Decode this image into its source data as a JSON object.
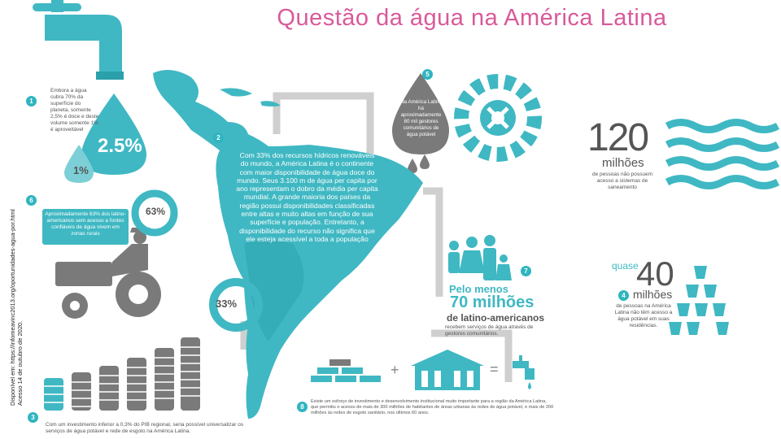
{
  "title": "Questão da água na América Latina",
  "source": {
    "line1": "Disponível em: https://infomeavinc2013.org/oportunidades-agua-por.html",
    "line2": "Acesso 14 de outubro de 2020."
  },
  "sections": {
    "s1": {
      "num": "1",
      "text": "Embora a água cubra 70% da superfície do planeta, somente 2,5% é doce e deste volume somente 1% é aproveitável",
      "pct_big": "2.5%",
      "pct_small": "1%"
    },
    "s2": {
      "num": "2",
      "text": "Com 33% dos recursos hídricos renováveis do mundo, a América Latina é o continente com maior disponibilidade de água doce do mundo. Seus 3.100 m de água per capita por ano representam o dobro da média per capita mundial. A grande maioria dos países da região possui disponibilidades classificadas entre altas e muito altas em função de sua superfície e população. Entretanto, a disponibilidade do recurso não significa que ele esteja acessível a toda a população"
    },
    "s3": {
      "num": "3",
      "text": "Com um investimento inferior a 0,3% do PIB regional, seria possível universalizar os serviços de água potável e rede de esgoto na América Latina."
    },
    "s4": {
      "num": "4",
      "prefix": "quase",
      "number": "40",
      "unit": "milhões",
      "text": "de pessoas na América Latina não têm acesso a água potável em suas residências."
    },
    "s5": {
      "num": "5",
      "text": "Na América Latina há aproximadamente 80 mil gestores comunitários de água potável"
    },
    "s6": {
      "num": "6",
      "text": "Aproximadamente 63% dos latino-americanos sem acesso a fontes confiáveis de água vivem em zonas rurais",
      "pct_a": "63%",
      "pct_b": "33%"
    },
    "s7": {
      "num": "7",
      "prefix": "Pelo menos",
      "number": "70 milhões",
      "sub": "de latino-americanos",
      "text": "recebem serviços de água através de gestores comunitários."
    },
    "s8": {
      "num": "8",
      "text": "Existe um esforço de investimento e desenvolvimento institucional muito importante para a região da América Latina, que permitiu o acesso de mais de 300 milhões de habitantes de áreas urbanas às redes de água potável, e mais de 200 milhões às redes de esgoto sanitário, nos últimos 60 anos.",
      "plus": "+",
      "equals": "="
    },
    "s120": {
      "number": "120",
      "unit": "milhões",
      "text": "de pessoas não possuem acesso a sistemas de saneamento"
    }
  },
  "colors": {
    "teal": "#3fb8c3",
    "teal_dark": "#2aa0ab",
    "gray": "#7a7a7a",
    "pink": "#d85a9a",
    "grey_pipe": "#c8c8c8"
  }
}
